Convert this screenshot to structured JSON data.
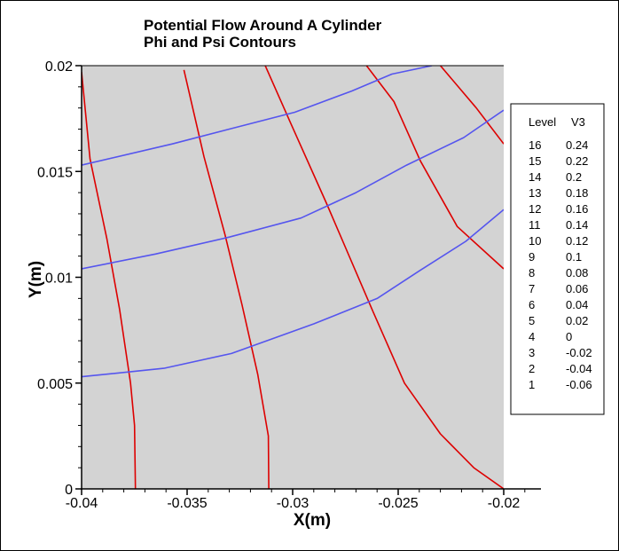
{
  "chart_data": {
    "type": "contour",
    "title": "Potential Flow Around A Cylinder",
    "subtitle": "Phi and Psi Contours",
    "xlabel": "X(m)",
    "ylabel": "Y(m)",
    "xlim": [
      -0.04,
      -0.02
    ],
    "ylim": [
      0,
      0.02
    ],
    "x_ticks": [
      "-0.04",
      "-0.035",
      "-0.03",
      "-0.025",
      "-0.02"
    ],
    "y_ticks": [
      "0",
      "0.005",
      "0.01",
      "0.015",
      "0.02"
    ],
    "x_tick_values": [
      -0.04,
      -0.035,
      -0.03,
      -0.025,
      -0.02
    ],
    "y_tick_values": [
      0,
      0.005,
      0.01,
      0.015,
      0.02
    ],
    "plot_background": "#d3d3d3",
    "legend": {
      "header_level": "Level",
      "header_value": "V3",
      "placement": "right",
      "levels": [
        {
          "level": "16",
          "value": "0.24"
        },
        {
          "level": "15",
          "value": "0.22"
        },
        {
          "level": "14",
          "value": "0.2"
        },
        {
          "level": "13",
          "value": "0.18"
        },
        {
          "level": "12",
          "value": "0.16"
        },
        {
          "level": "11",
          "value": "0.14"
        },
        {
          "level": "10",
          "value": "0.12"
        },
        {
          "level": "9",
          "value": "0.1"
        },
        {
          "level": "8",
          "value": "0.08"
        },
        {
          "level": "7",
          "value": "0.06"
        },
        {
          "level": "6",
          "value": "0.04"
        },
        {
          "level": "5",
          "value": "0.02"
        },
        {
          "level": "4",
          "value": "0"
        },
        {
          "level": "3",
          "value": "-0.02"
        },
        {
          "level": "2",
          "value": "-0.04"
        },
        {
          "level": "1",
          "value": "-0.06"
        }
      ]
    },
    "phi_color": "#dd0000",
    "psi_color": "#5555ee",
    "series": [
      {
        "kind": "phi",
        "x": [
          -0.03745,
          -0.03749,
          -0.03768,
          -0.0382,
          -0.0388,
          -0.0396,
          -0.04
        ],
        "y": [
          0,
          0.003,
          0.005,
          0.0085,
          0.0118,
          0.0156,
          0.0197
        ]
      },
      {
        "kind": "phi",
        "x": [
          -0.03113,
          -0.03115,
          -0.03165,
          -0.0324,
          -0.0332,
          -0.0342,
          -0.03515
        ],
        "y": [
          0,
          0.0025,
          0.0054,
          0.0087,
          0.012,
          0.0157,
          0.0198
        ]
      },
      {
        "kind": "phi",
        "x": [
          -0.02,
          -0.02142,
          -0.023,
          -0.0247,
          -0.0262,
          -0.0284,
          -0.0301,
          -0.0313
        ],
        "y": [
          0,
          0.001,
          0.0026,
          0.005,
          0.0084,
          0.0135,
          0.0173,
          0.02
        ]
      },
      {
        "kind": "phi",
        "x": [
          -0.02,
          -0.0222,
          -0.02395,
          -0.0252,
          -0.0265
        ],
        "y": [
          0.0104,
          0.0124,
          0.0155,
          0.0183,
          0.02
        ]
      },
      {
        "kind": "phi",
        "x": [
          -0.02,
          -0.0213,
          -0.023
        ],
        "y": [
          0.0163,
          0.018,
          0.02
        ]
      },
      {
        "kind": "psi",
        "x": [
          -0.04,
          -0.0361,
          -0.0329,
          -0.029,
          -0.026,
          -0.024,
          -0.0218,
          -0.02
        ],
        "y": [
          0.0053,
          0.0057,
          0.0064,
          0.0078,
          0.009,
          0.0103,
          0.0117,
          0.0132
        ]
      },
      {
        "kind": "psi",
        "x": [
          -0.04,
          -0.0365,
          -0.033,
          -0.0296,
          -0.027,
          -0.0246,
          -0.0219,
          -0.02
        ],
        "y": [
          0.0104,
          0.0111,
          0.0119,
          0.0128,
          0.014,
          0.0153,
          0.0166,
          0.0179
        ]
      },
      {
        "kind": "psi",
        "x": [
          -0.04,
          -0.0357,
          -0.033,
          -0.0299,
          -0.0272,
          -0.0253,
          -0.0234
        ],
        "y": [
          0.0153,
          0.0163,
          0.017,
          0.0178,
          0.0188,
          0.0196,
          0.02
        ]
      }
    ]
  }
}
